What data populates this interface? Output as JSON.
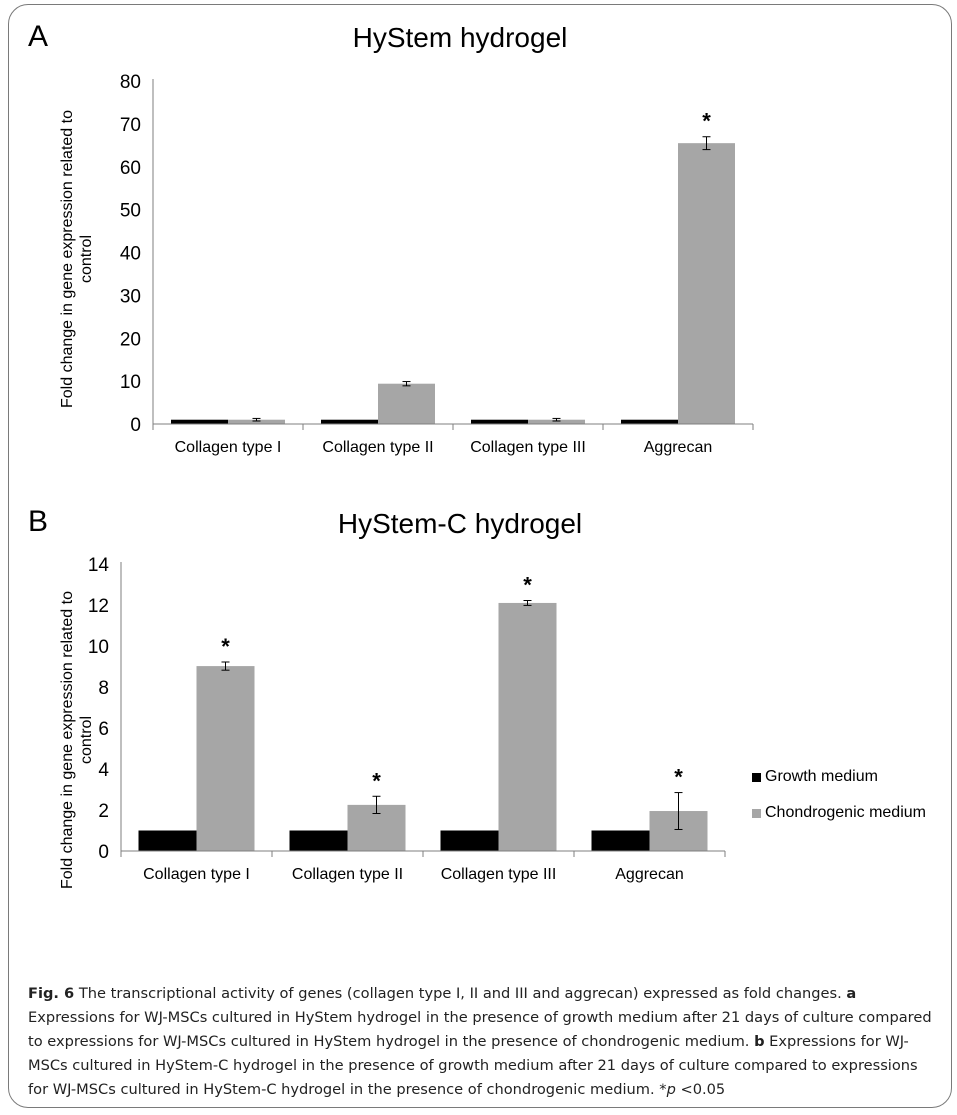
{
  "panels": [
    {
      "letter": "A",
      "title": "HyStem hydrogel"
    },
    {
      "letter": "B",
      "title": "HyStem-C hydrogel"
    }
  ],
  "ylabel_line1": "Fold change in gene expression related to",
  "ylabel_line2": "control",
  "legend": {
    "growth": "Growth medium",
    "chondrogenic": "Chondrogenic medium"
  },
  "colors": {
    "growth": "#000000",
    "chondrogenic": "#a6a6a6"
  },
  "caption": {
    "figlabel": "Fig. 6",
    "intro": " The transcriptional activity of genes (collagen type I, II and III and aggrecan) expressed as fold changes. ",
    "a_label": "a",
    "a_text": " Expressions for WJ-MSCs cultured in HyStem hydrogel in the presence of growth medium after 21 days of culture compared to expressions for WJ-MSCs cultured in HyStem hydrogel in the presence of chondrogenic medium. ",
    "b_label": "b",
    "b_text": " Expressions for WJ-MSCs cultured in HyStem-C hydrogel in the presence of growth medium after 21 days of culture compared to expressions for WJ-MSCs cultured in HyStem-C hydrogel in the presence of chondrogenic medium. *",
    "p_italic": "p",
    "p_text": " <0.05"
  },
  "chart_data": [
    {
      "type": "bar",
      "title": "HyStem hydrogel",
      "ylabel": "Fold change in gene expression related to control",
      "categories": [
        "Collagen type I",
        "Collagen type II",
        "Collagen type III",
        "Aggrecan"
      ],
      "ylim": [
        0,
        80
      ],
      "yticks": [
        "0",
        "10",
        "20",
        "30",
        "40",
        "50",
        "60",
        "70",
        "80"
      ],
      "series": [
        {
          "name": "Growth medium",
          "values": [
            1,
            1,
            1,
            1
          ],
          "errors": [
            0,
            0,
            0,
            0
          ],
          "significant": [
            false,
            false,
            false,
            false
          ]
        },
        {
          "name": "Chondrogenic medium",
          "values": [
            1,
            9.4,
            1,
            65.5
          ],
          "errors": [
            0.3,
            0.5,
            0.3,
            1.5
          ],
          "significant": [
            false,
            false,
            false,
            true
          ]
        }
      ],
      "significance_marker": "*"
    },
    {
      "type": "bar",
      "title": "HyStem-C hydrogel",
      "ylabel": "Fold change in gene expression related to control",
      "categories": [
        "Collagen type I",
        "Collagen type II",
        "Collagen type III",
        "Aggrecan"
      ],
      "ylim": [
        0,
        14
      ],
      "yticks": [
        "0",
        "2",
        "4",
        "6",
        "8",
        "10",
        "12",
        "14"
      ],
      "series": [
        {
          "name": "Growth medium",
          "values": [
            1,
            1,
            1,
            1
          ],
          "errors": [
            0,
            0,
            0,
            0
          ],
          "significant": [
            false,
            false,
            false,
            false
          ]
        },
        {
          "name": "Chondrogenic medium",
          "values": [
            9.02,
            2.25,
            12.1,
            1.95
          ],
          "errors": [
            0.2,
            0.42,
            0.12,
            0.9
          ],
          "significant": [
            true,
            true,
            true,
            true
          ]
        }
      ],
      "significance_marker": "*",
      "legend_position": "right"
    }
  ]
}
